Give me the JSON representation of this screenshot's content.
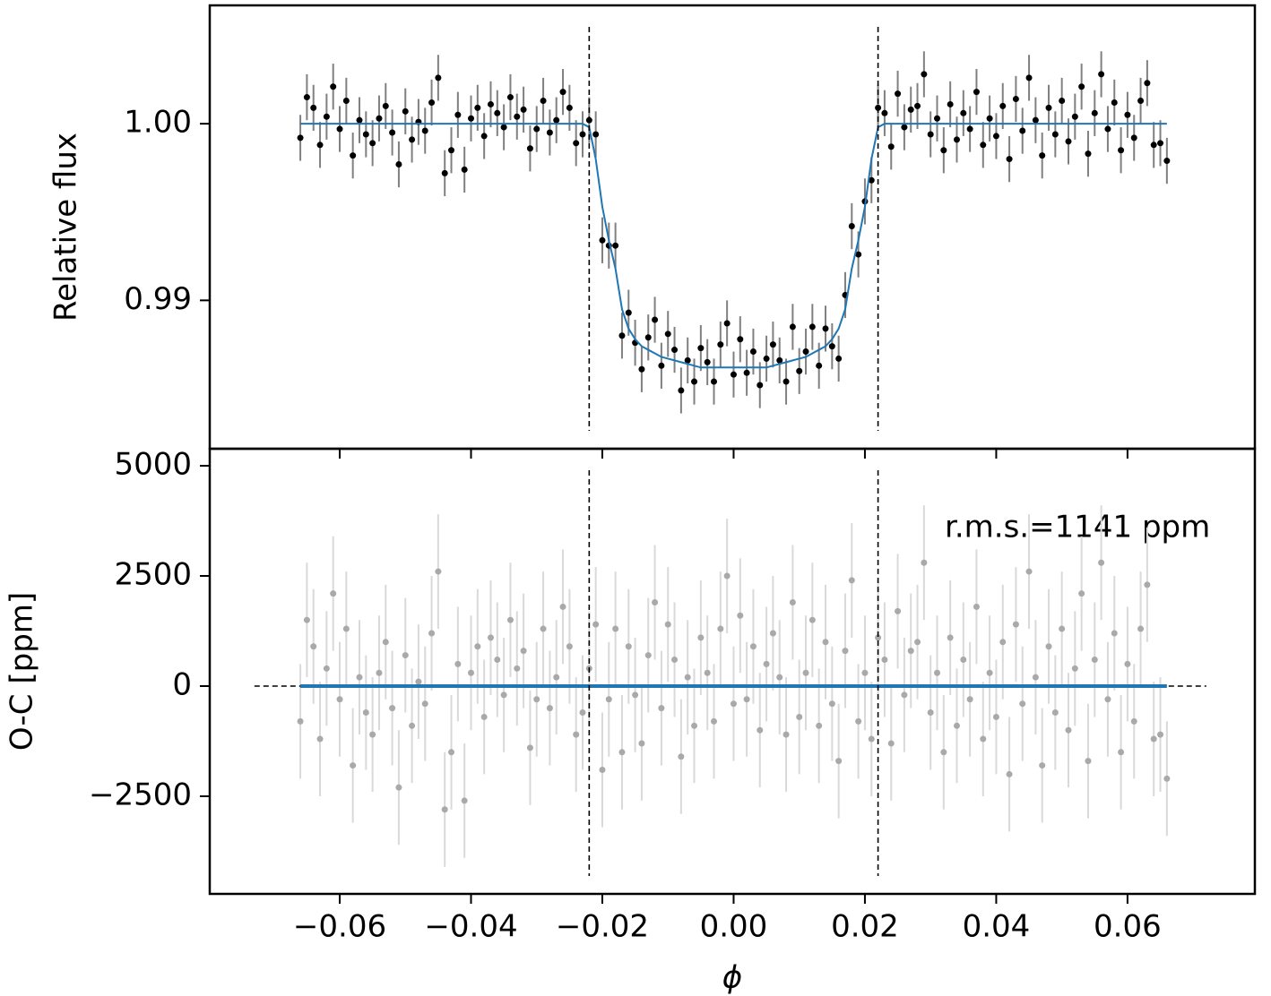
{
  "chart_data": [
    {
      "type": "scatter",
      "ylabel": "Relative flux",
      "xlim": [
        -0.0798,
        0.0794
      ],
      "ylim": [
        0.9816,
        1.0067
      ],
      "yticks": [
        {
          "value": 0.99,
          "label": "0.99"
        },
        {
          "value": 1.0,
          "label": "1.00"
        }
      ],
      "vlines": [
        -0.022,
        0.022
      ],
      "color": "#000000",
      "errcolor": "#808080",
      "yerr": 0.0013,
      "x": [
        -0.066,
        -0.065,
        -0.064,
        -0.063,
        -0.062,
        -0.061,
        -0.06,
        -0.059,
        -0.058,
        -0.057,
        -0.056,
        -0.055,
        -0.054,
        -0.053,
        -0.052,
        -0.051,
        -0.05,
        -0.049,
        -0.048,
        -0.047,
        -0.046,
        -0.045,
        -0.044,
        -0.043,
        -0.042,
        -0.041,
        -0.04,
        -0.039,
        -0.038,
        -0.037,
        -0.036,
        -0.035,
        -0.034,
        -0.033,
        -0.032,
        -0.031,
        -0.03,
        -0.029,
        -0.028,
        -0.027,
        -0.026,
        -0.025,
        -0.024,
        -0.023,
        -0.022,
        -0.021,
        -0.02,
        -0.019,
        -0.018,
        -0.017,
        -0.016,
        -0.015,
        -0.014,
        -0.013,
        -0.012,
        -0.011,
        -0.01,
        -0.009,
        -0.008,
        -0.007,
        -0.006,
        -0.005,
        -0.004,
        -0.003,
        -0.002,
        -0.001,
        0,
        0.001,
        0.002,
        0.003,
        0.004,
        0.005,
        0.006,
        0.007,
        0.008,
        0.009,
        0.01,
        0.011,
        0.012,
        0.013,
        0.014,
        0.015,
        0.016,
        0.017,
        0.018,
        0.019,
        0.02,
        0.021,
        0.022,
        0.023,
        0.024,
        0.025,
        0.026,
        0.027,
        0.028,
        0.029,
        0.03,
        0.031,
        0.032,
        0.033,
        0.034,
        0.035,
        0.036,
        0.037,
        0.038,
        0.039,
        0.04,
        0.041,
        0.042,
        0.043,
        0.044,
        0.045,
        0.046,
        0.047,
        0.048,
        0.049,
        0.05,
        0.051,
        0.052,
        0.053,
        0.054,
        0.055,
        0.056,
        0.057,
        0.058,
        0.059,
        0.06,
        0.061,
        0.062,
        0.063,
        0.064,
        0.065,
        0.066
      ],
      "values": [
        0.9992,
        1.0015,
        1.0009,
        0.9988,
        1.0004,
        1.0021,
        0.9997,
        1.0013,
        0.9982,
        1.0002,
        0.9994,
        0.9989,
        1.0003,
        1.001,
        0.9995,
        0.9977,
        1.0007,
        0.9991,
        1.0001,
        0.9996,
        1.0012,
        1.0026,
        0.9972,
        0.9985,
        1.0005,
        0.9974,
        1.0003,
        1.0009,
        0.9993,
        1.0011,
        1.0006,
        0.9998,
        1.0015,
        1.0004,
        1.0008,
        0.9986,
        0.9997,
        1.0013,
        0.9995,
        1.0002,
        1.0018,
        1.0009,
        0.9989,
        0.9994,
        1.0002,
        0.9994,
        0.9934,
        0.9931,
        0.9931,
        0.988,
        0.9893,
        0.9876,
        0.9861,
        0.9879,
        0.9889,
        0.9863,
        0.9881,
        0.9872,
        0.9849,
        0.9866,
        0.9854,
        0.9873,
        0.9865,
        0.9854,
        0.9875,
        0.9887,
        0.9858,
        0.9878,
        0.9859,
        0.9871,
        0.9852,
        0.9867,
        0.9875,
        0.9866,
        0.9854,
        0.9885,
        0.986,
        0.9871,
        0.9885,
        0.9863,
        0.9884,
        0.9874,
        0.9867,
        0.9903,
        0.9942,
        0.9926,
        0.9956,
        0.9968,
        1.0009,
        1.0006,
        0.9987,
        1.0017,
        0.9998,
        1.0008,
        1.001,
        1.0028,
        0.9994,
        1.0003,
        0.9985,
        1.0011,
        0.9991,
        1.0006,
        0.9997,
        1.0018,
        0.9988,
        1.0003,
        0.9993,
        1.001,
        0.998,
        1.0014,
        0.9996,
        1.0026,
        1.0002,
        0.9982,
        1.0009,
        0.9994,
        1.0013,
        0.999,
        1.0004,
        1.0021,
        0.9983,
        1.0006,
        1.0028,
        0.9997,
        1.0012,
        0.9985,
        1.0005,
        0.9992,
        1.0013,
        1.0023,
        0.9988,
        0.9989,
        0.9979
      ],
      "model": {
        "color": "#1f77b4",
        "x": [
          -0.066,
          -0.023,
          -0.022,
          -0.021,
          -0.02,
          -0.019,
          -0.018,
          -0.017,
          -0.016,
          -0.015,
          -0.014,
          -0.013,
          -0.012,
          -0.011,
          -0.01,
          -0.009,
          -0.008,
          -0.007,
          -0.006,
          -0.005,
          -0.004,
          -0.003,
          -0.002,
          -0.001,
          0,
          0.001,
          0.002,
          0.003,
          0.004,
          0.005,
          0.006,
          0.007,
          0.008,
          0.009,
          0.01,
          0.011,
          0.012,
          0.013,
          0.014,
          0.015,
          0.016,
          0.017,
          0.018,
          0.019,
          0.02,
          0.021,
          0.022,
          0.023,
          0.066
        ],
        "values": [
          1,
          1,
          0.9998,
          0.998,
          0.9953,
          0.9934,
          0.9918,
          0.9895,
          0.9884,
          0.9878,
          0.9874,
          0.9872,
          0.987,
          0.9868,
          0.9867,
          0.9866,
          0.9865,
          0.9864,
          0.9863,
          0.9862,
          0.9862,
          0.9862,
          0.9862,
          0.9862,
          0.9862,
          0.9862,
          0.9862,
          0.9862,
          0.9862,
          0.9862,
          0.9863,
          0.9864,
          0.9865,
          0.9866,
          0.9867,
          0.9868,
          0.987,
          0.9872,
          0.9874,
          0.9878,
          0.9884,
          0.9895,
          0.9918,
          0.9934,
          0.9953,
          0.998,
          0.9998,
          1,
          1
        ]
      }
    },
    {
      "type": "scatter",
      "ylabel": "O-C [ppm]",
      "xlabel": "ϕ",
      "annotation": "r.m.s.=1141 ppm",
      "xlim": [
        -0.0798,
        0.0794
      ],
      "ylim": [
        -4715,
        5386
      ],
      "xticks": [
        {
          "value": -0.06,
          "label": "−0.06"
        },
        {
          "value": -0.04,
          "label": "−0.04"
        },
        {
          "value": -0.02,
          "label": "−0.02"
        },
        {
          "value": 0,
          "label": "0.00"
        },
        {
          "value": 0.02,
          "label": "0.02"
        },
        {
          "value": 0.04,
          "label": "0.04"
        },
        {
          "value": 0.06,
          "label": "0.06"
        }
      ],
      "yticks": [
        {
          "value": -2500,
          "label": "−2500"
        },
        0,
        2500,
        5000
      ],
      "vlines": [
        -0.022,
        0.022
      ],
      "hline": {
        "y": 0,
        "x": [
          -0.073,
          0.072
        ]
      },
      "color": "#a9a9a9",
      "errcolor": "#d9d9d9",
      "yerr": 1300,
      "x": [
        -0.066,
        -0.065,
        -0.064,
        -0.063,
        -0.062,
        -0.061,
        -0.06,
        -0.059,
        -0.058,
        -0.057,
        -0.056,
        -0.055,
        -0.054,
        -0.053,
        -0.052,
        -0.051,
        -0.05,
        -0.049,
        -0.048,
        -0.047,
        -0.046,
        -0.045,
        -0.044,
        -0.043,
        -0.042,
        -0.041,
        -0.04,
        -0.039,
        -0.038,
        -0.037,
        -0.036,
        -0.035,
        -0.034,
        -0.033,
        -0.032,
        -0.031,
        -0.03,
        -0.029,
        -0.028,
        -0.027,
        -0.026,
        -0.025,
        -0.024,
        -0.023,
        -0.022,
        -0.021,
        -0.02,
        -0.019,
        -0.018,
        -0.017,
        -0.016,
        -0.015,
        -0.014,
        -0.013,
        -0.012,
        -0.011,
        -0.01,
        -0.009,
        -0.008,
        -0.007,
        -0.006,
        -0.005,
        -0.004,
        -0.003,
        -0.002,
        -0.001,
        0,
        0.001,
        0.002,
        0.003,
        0.004,
        0.005,
        0.006,
        0.007,
        0.008,
        0.009,
        0.01,
        0.011,
        0.012,
        0.013,
        0.014,
        0.015,
        0.016,
        0.017,
        0.018,
        0.019,
        0.02,
        0.021,
        0.022,
        0.023,
        0.024,
        0.025,
        0.026,
        0.027,
        0.028,
        0.029,
        0.03,
        0.031,
        0.032,
        0.033,
        0.034,
        0.035,
        0.036,
        0.037,
        0.038,
        0.039,
        0.04,
        0.041,
        0.042,
        0.043,
        0.044,
        0.045,
        0.046,
        0.047,
        0.048,
        0.049,
        0.05,
        0.051,
        0.052,
        0.053,
        0.054,
        0.055,
        0.056,
        0.057,
        0.058,
        0.059,
        0.06,
        0.061,
        0.062,
        0.063,
        0.064,
        0.065,
        0.066
      ],
      "values": [
        -800,
        1500,
        900,
        -1200,
        400,
        2100,
        -300,
        1300,
        -1800,
        200,
        -600,
        -1100,
        300,
        1000,
        -500,
        -2300,
        700,
        -900,
        100,
        -400,
        1200,
        2600,
        -2800,
        -1500,
        500,
        -2600,
        300,
        900,
        -700,
        1100,
        600,
        -200,
        1500,
        400,
        800,
        -1400,
        -300,
        1300,
        -500,
        200,
        1800,
        900,
        -1100,
        -600,
        400,
        1400,
        -1900,
        -300,
        1300,
        -1500,
        900,
        -200,
        -1300,
        700,
        1900,
        -500,
        1400,
        600,
        -1600,
        200,
        -900,
        1100,
        300,
        -800,
        1300,
        2500,
        -400,
        1600,
        -300,
        900,
        -1000,
        500,
        1200,
        200,
        -1100,
        1900,
        -700,
        300,
        1500,
        -900,
        1000,
        -400,
        -1700,
        800,
        2400,
        -800,
        300,
        -1200,
        1100,
        600,
        -1300,
        1700,
        -200,
        800,
        1000,
        2800,
        -600,
        300,
        -1500,
        1100,
        -900,
        600,
        -300,
        1800,
        -1200,
        300,
        -700,
        1000,
        -2000,
        1400,
        -400,
        2600,
        200,
        -1800,
        900,
        -600,
        1300,
        -1000,
        400,
        2100,
        -1700,
        600,
        2800,
        -300,
        1200,
        -1500,
        500,
        -800,
        1300,
        2300,
        -1200,
        -1100,
        -2100
      ],
      "model": {
        "color": "#1f77b4",
        "x": [
          -0.066,
          0.066
        ],
        "values": [
          0,
          0
        ]
      }
    }
  ]
}
